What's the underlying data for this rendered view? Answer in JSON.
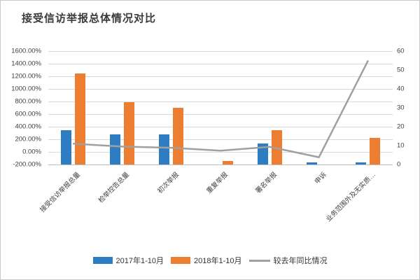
{
  "title": "接受信访举报总体情况对比",
  "chart_data": {
    "type": "bar",
    "subtype": "grouped bars with secondary-axis line overlay",
    "title": "接受信访举报总体情况对比",
    "categories": [
      "接受信访举报总量",
      "检举控告总量",
      "初次举报",
      "重复举报",
      "署名举报",
      "申诉",
      "业务范围外及无实质…"
    ],
    "series": [
      {
        "name": "2017年1-10月",
        "type": "bar",
        "axis": "right",
        "color": "#2e7dc3",
        "values": [
          18,
          16,
          16,
          0,
          11,
          1,
          1
        ]
      },
      {
        "name": "2018年1-10月",
        "type": "bar",
        "axis": "right",
        "color": "#ed7d31",
        "values": [
          48,
          33,
          30,
          2,
          18,
          0,
          14
        ]
      },
      {
        "name": "较去年同比情况",
        "type": "line",
        "axis": "left",
        "color": "#a0a0a0",
        "values": [
          130,
          85,
          65,
          20,
          80,
          -85,
          1450
        ]
      }
    ],
    "left_axis": {
      "unit": "percent",
      "min": -200,
      "max": 1600,
      "step": 200,
      "tick_labels": [
        "1600.00%",
        "1400.00%",
        "1200.00%",
        "1000.00%",
        "800.00%",
        "600.00%",
        "400.00%",
        "200.00%",
        "0.00%",
        "-200.00%"
      ]
    },
    "right_axis": {
      "unit": "count",
      "min": 0,
      "max": 60,
      "step": 10,
      "tick_labels": [
        "60",
        "50",
        "40",
        "30",
        "20",
        "10",
        "0"
      ]
    },
    "grid": true,
    "legend_position": "bottom",
    "colors": {
      "gridline": "#d9d9d9",
      "axis_line": "#bfbfbf",
      "text": "#404040"
    }
  }
}
